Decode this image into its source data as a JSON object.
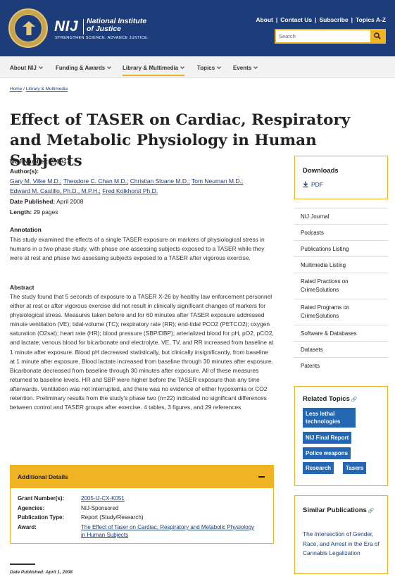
{
  "header": {
    "logo_abbr": "NIJ",
    "logo_name": "National Institute of Justice",
    "tagline": "STRENGTHEN SCIENCE. ADVANCE JUSTICE.",
    "util_links": [
      "About",
      "Contact Us",
      "Subscribe",
      "Topics A-Z"
    ],
    "search_placeholder": "Search",
    "colors": {
      "header_bg": "#1c3c7a",
      "accent": "#f0b323",
      "tag_bg": "#2467b3"
    }
  },
  "nav": {
    "items": [
      {
        "label": "About NIJ"
      },
      {
        "label": "Funding & Awards"
      },
      {
        "label": "Library & Multimedia"
      },
      {
        "label": "Topics"
      },
      {
        "label": "Events"
      }
    ],
    "active_index": 2
  },
  "breadcrumb": {
    "home": "Home",
    "sep": "/",
    "current": "Library & Multimedia"
  },
  "article": {
    "title": "Effect of TASER on Cardiac, Respiratory and Metabolic Physiology in Human Subjects",
    "ncj_label": "NCJ Number:",
    "ncj_value": "236947",
    "authors_label": "Author(s):",
    "authors": [
      "Gary M. Vilke M.D.;",
      "Theodore C. Chan M.D.;",
      "Christian Sloane M.D.;",
      "Tom Neuman M.D.;",
      "Edward M. Castillo, Ph.D., M.P.H.;",
      "Fred Kolkhorst Ph.D."
    ],
    "date_label": "Date Published:",
    "date_value": "April 2008",
    "length_label": "Length:",
    "length_value": "29 pages",
    "annotation_head": "Annotation",
    "annotation_text": "This study examined the effects of a single TASER exposure on markers of physiological stress in humans in a two-phase study, with phase one assessing subjects exposed to a TASER while they were at rest and phase two assessing subjects exposed to a TASER after vigorous exercise.",
    "abstract_head": "Abstract",
    "abstract_text": "The study found that 5 seconds of exposure to a TASER X-26 by healthy law enforcement personnel either at rest or after vigorous exercise did not result in clinically significant changes of markers for physiological stress. Measures taken before and for 60 minutes after TASER exposure addressed minute ventilation (VE); tidal-volume (TC); respiratory rate (RR); end-tidal PCO2 (PETCO2); oxygen saturation (O2sat); heart rate (HR); blood pressure (SBP/DBP); arterialized blood for pH, pO2, pCO2, and lactate; venous blood for bicarbonate and electrolyte. VE, TV, and RR increased from baseline at 1 minute after exposure. Blood pH decreased statistically, but clinically insignificantly, from baseline at 1 minute after exposure. Blood lactate increased from baseline through 30 minutes after exposure. Bicarbonate decreased from baseline through 30 minutes after exposure. All of these measures returned to baseline levels. HR and SBP were higher before the TASER exposure than any time afterwards. Ventilation was not interrupted, and there was no evidence of either hypoxemia or CO2 retention. Preliminary results from the study's phase two (n=22) indicated no significant differences between control and TASER groups after exercise. 4 tables, 3 figures, and 29 references"
  },
  "additional_details": {
    "heading": "Additional Details",
    "rows": [
      {
        "label": "Grant Number(s):",
        "value": "2005-IJ-CX-K051"
      },
      {
        "label": "Agencies:",
        "value": "NIJ-Sponsored"
      },
      {
        "label": "Publication Type:",
        "value": "Report (Study/Research)"
      },
      {
        "label": "Award:",
        "value": "The Effect of Taser on Cardiac, Respiratory and Metabolic Physiology in Human Subjects"
      }
    ]
  },
  "footer_date": "Date Published: April 1, 2008",
  "sidebar": {
    "downloads_head": "Downloads",
    "pdf_label": "PDF",
    "links": [
      "NIJ Journal",
      "Podcasts",
      "Publications Listing",
      "Multimedia Listing",
      "Rated Practices on CrimeSolutions",
      "Rated Programs on CrimeSolutions",
      "Software & Databases",
      "Datasets",
      "Patents"
    ],
    "related_head": "Related Topics",
    "tags": [
      "Less lethal technologies",
      "NIJ Final Report",
      "Police weapons",
      "Research",
      "Tasers"
    ],
    "similar_head": "Similar Publications",
    "similar_link": "The Intersection of Gender, Race, and Arrest in the Era of Cannabis Legalization"
  }
}
